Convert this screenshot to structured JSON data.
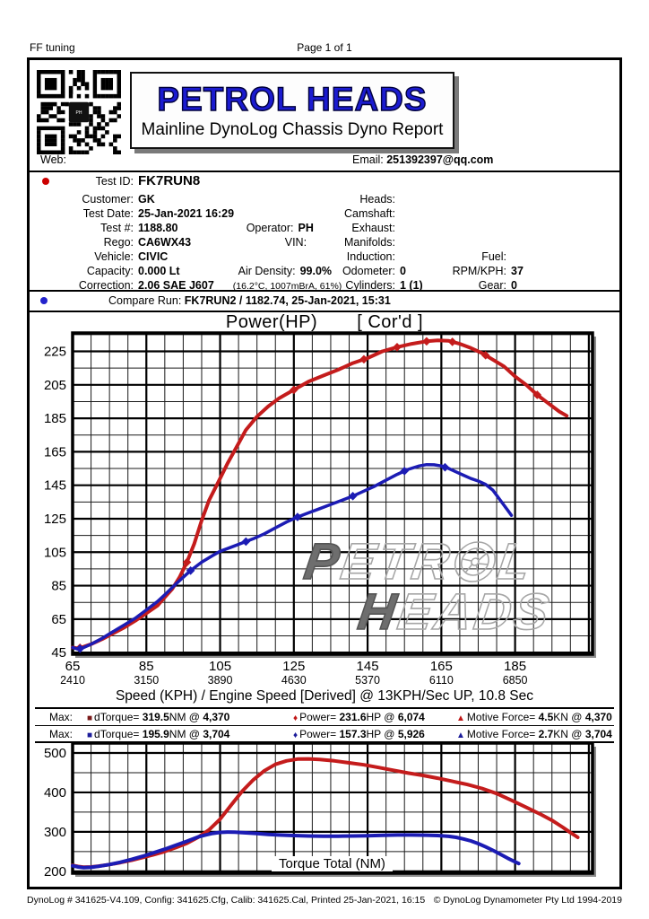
{
  "page_header": {
    "left": "FF tuning",
    "center": "Page 1 of 1"
  },
  "brand": {
    "title": "PETROL HEADS",
    "subtitle": "Mainline DynoLog Chassis Dyno Report",
    "title_color": "#1b1bd0"
  },
  "contact": {
    "web_label": "Web:",
    "email_label": "Email:",
    "email_value": "251392397@qq.com"
  },
  "details": {
    "rows": [
      {
        "big": true,
        "bullet": "#cc0000",
        "left": [
          {
            "l": "Test ID:",
            "v": "FK7RUN8"
          }
        ],
        "mid": [],
        "right": []
      },
      {
        "left": [
          {
            "l": "Customer:",
            "v": "GK"
          }
        ],
        "mid": [
          {
            "l": "Heads:",
            "v": ""
          }
        ],
        "right": []
      },
      {
        "left": [
          {
            "l": "Test Date:",
            "v": "25-Jan-2021 16:29"
          }
        ],
        "mid": [
          {
            "l": "Camshaft:",
            "v": ""
          }
        ],
        "right": []
      },
      {
        "left": [
          {
            "l": "Test #:",
            "v": "1188.80"
          },
          {
            "l": "Operator:",
            "v": "PH"
          }
        ],
        "mid": [
          {
            "l": "Exhaust:",
            "v": ""
          }
        ],
        "right": []
      },
      {
        "left": [
          {
            "l": "Rego:",
            "v": "CA6WX43"
          },
          {
            "l": "VIN:",
            "v": ""
          }
        ],
        "mid": [
          {
            "l": "Manifolds:",
            "v": ""
          }
        ],
        "right": []
      },
      {
        "left": [
          {
            "l": "Vehicle:",
            "v": "CIVIC"
          }
        ],
        "mid": [
          {
            "l": "Induction:",
            "v": ""
          }
        ],
        "right": [
          {
            "l": "Fuel:",
            "v": ""
          }
        ]
      },
      {
        "left": [
          {
            "l": "Capacity:",
            "v": "0.000 Lt"
          },
          {
            "l": "Air Density:",
            "v": "99.0%"
          }
        ],
        "mid": [
          {
            "l": "Odometer:",
            "v": "0"
          }
        ],
        "right": [
          {
            "l": "RPM/KPH:",
            "v": "37"
          }
        ]
      },
      {
        "left": [
          {
            "l": "Correction:",
            "v": "2.06 SAE J607"
          },
          {
            "l": "",
            "v": "(16.2°C, 1007mBrA, 61%)",
            "small": true
          }
        ],
        "mid": [
          {
            "l": "Cylinders:",
            "v": "1 (1)"
          }
        ],
        "right": [
          {
            "l": "Gear:",
            "v": "0"
          }
        ]
      }
    ]
  },
  "compare": {
    "bullet": "#2222cc",
    "label": "Compare Run:",
    "value": "FK7RUN2 / 1182.74,  25-Jan-2021,   15:31"
  },
  "watermark": {
    "l1a": "P",
    "l1b": "ETR",
    "l1c": "L",
    "l2a": "H",
    "l2b": "EADS"
  },
  "legend": {
    "rows": [
      {
        "max_label": "Max:",
        "items": [
          {
            "marker": "■",
            "color": "#7a1a1a",
            "p": "dTorque= ",
            "v1": "319.5",
            "u": "NM",
            "v2": "4,370"
          },
          {
            "marker": "♦",
            "color": "#c01818",
            "p": "Power= ",
            "v1": "231.6",
            "u": "HP",
            "v2": "6,074"
          },
          {
            "marker": "▲",
            "color": "#c01818",
            "p": "Motive Force= ",
            "v1": "4.5",
            "u": "KN",
            "v2": "4,370"
          }
        ]
      },
      {
        "max_label": "Max:",
        "items": [
          {
            "marker": "■",
            "color": "#1c1c9a",
            "p": "dTorque= ",
            "v1": "195.9",
            "u": "NM",
            "v2": "3,704"
          },
          {
            "marker": "♦",
            "color": "#1c1c9a",
            "p": "Power= ",
            "v1": "157.3",
            "u": "HP",
            "v2": "5,926"
          },
          {
            "marker": "▲",
            "color": "#1c1c9a",
            "p": "Motive Force= ",
            "v1": "2.7",
            "u": "KN",
            "v2": "3,704"
          }
        ]
      }
    ]
  },
  "chart_data": [
    {
      "type": "line",
      "title": "Power(HP)",
      "title_suffix": "[ Cor'd ]",
      "xlabel": "Speed (KPH) / Engine Speed [Derived] @ 13KPH/Sec UP, 10.8 Sec",
      "x_range": [
        65,
        206
      ],
      "y_range": [
        44,
        236
      ],
      "x_minor": 5,
      "x_major": 20,
      "y_minor": 10,
      "y_major": 20,
      "grid": true,
      "legend_position": "below",
      "y_ticks": [
        45,
        65,
        85,
        105,
        125,
        145,
        165,
        185,
        205,
        225
      ],
      "x_ticks": [
        {
          "kph": "65",
          "rpm": "2410"
        },
        {
          "kph": "85",
          "rpm": "3150"
        },
        {
          "kph": "105",
          "rpm": "3890"
        },
        {
          "kph": "125",
          "rpm": "4630"
        },
        {
          "kph": "145",
          "rpm": "5370"
        },
        {
          "kph": "165",
          "rpm": "6110"
        },
        {
          "kph": "185",
          "rpm": "6850"
        }
      ],
      "series": [
        {
          "name": "FK7RUN8 Power HP (Cor'd)",
          "color": "#c41c1c",
          "width": 4,
          "markers": [
            67,
            96,
            125,
            144,
            153,
            161,
            168,
            177,
            191
          ],
          "points": [
            [
              65,
              48
            ],
            [
              66.5,
              47.5
            ],
            [
              68,
              48.5
            ],
            [
              70,
              50
            ],
            [
              73,
              53
            ],
            [
              76,
              56.5
            ],
            [
              79,
              60
            ],
            [
              82,
              64
            ],
            [
              85,
              68.5
            ],
            [
              88,
              73
            ],
            [
              90,
              78
            ],
            [
              92,
              83
            ],
            [
              94,
              90
            ],
            [
              96,
              99
            ],
            [
              98,
              110
            ],
            [
              100,
              124
            ],
            [
              102,
              136
            ],
            [
              105,
              149
            ],
            [
              107,
              158
            ],
            [
              110,
              170
            ],
            [
              112,
              178
            ],
            [
              115,
              186
            ],
            [
              118,
              192
            ],
            [
              121,
              197
            ],
            [
              125,
              202
            ],
            [
              129,
              207
            ],
            [
              133,
              210.5
            ],
            [
              137,
              214
            ],
            [
              141,
              218
            ],
            [
              145,
              221
            ],
            [
              149,
              225
            ],
            [
              153,
              227.5
            ],
            [
              157,
              229.5
            ],
            [
              161,
              231
            ],
            [
              164,
              231.6
            ],
            [
              167,
              231.3
            ],
            [
              170,
              229.5
            ],
            [
              173,
              227
            ],
            [
              176,
              224
            ],
            [
              179,
              220
            ],
            [
              182,
              216
            ],
            [
              185,
              210
            ],
            [
              188,
              205
            ],
            [
              191,
              199
            ],
            [
              194,
              194
            ],
            [
              197,
              189
            ],
            [
              199,
              186.5
            ]
          ]
        },
        {
          "name": "FK7RUN2 Power HP (Cor'd)",
          "color": "#1c1cb4",
          "width": 3.5,
          "markers": [
            67,
            97,
            112,
            126,
            141,
            155,
            166
          ],
          "points": [
            [
              65,
              48
            ],
            [
              66.5,
              47
            ],
            [
              68,
              48
            ],
            [
              70,
              50
            ],
            [
              73,
              53.5
            ],
            [
              76,
              57.5
            ],
            [
              79,
              61.5
            ],
            [
              82,
              65.5
            ],
            [
              85,
              70.5
            ],
            [
              88,
              75.5
            ],
            [
              90,
              79.5
            ],
            [
              93,
              86
            ],
            [
              95,
              90
            ],
            [
              97,
              94
            ],
            [
              100,
              99
            ],
            [
              103,
              103
            ],
            [
              105,
              105.5
            ],
            [
              108,
              108
            ],
            [
              111,
              110.5
            ],
            [
              114,
              113
            ],
            [
              117,
              116
            ],
            [
              120,
              119.5
            ],
            [
              123,
              123
            ],
            [
              126,
              126
            ],
            [
              129,
              128.5
            ],
            [
              132,
              131
            ],
            [
              135,
              133.5
            ],
            [
              138,
              136
            ],
            [
              141,
              138.5
            ],
            [
              144,
              141.5
            ],
            [
              147,
              144.5
            ],
            [
              150,
              148
            ],
            [
              153,
              151.5
            ],
            [
              156,
              154.5
            ],
            [
              159,
              156.5
            ],
            [
              161,
              157.3
            ],
            [
              163,
              157.2
            ],
            [
              165,
              156.5
            ],
            [
              167,
              155
            ],
            [
              169,
              153
            ],
            [
              171,
              151
            ],
            [
              173,
              149
            ],
            [
              175,
              147.5
            ],
            [
              177,
              145.5
            ],
            [
              179,
              142
            ],
            [
              181,
              136
            ],
            [
              183,
              130
            ],
            [
              184,
              127
            ]
          ]
        }
      ]
    },
    {
      "type": "line",
      "title": "Torque Total (NM)",
      "x_range": [
        65,
        206
      ],
      "y_range": [
        195,
        525
      ],
      "x_minor": 5,
      "x_major": 20,
      "y_minor": 50,
      "y_major": 100,
      "grid": true,
      "y_ticks": [
        200,
        300,
        400,
        500
      ],
      "x_ticks": [],
      "series": [
        {
          "name": "FK7RUN8 Torque Total NM",
          "color": "#c41c1c",
          "width": 4,
          "markers": [],
          "points": [
            [
              65,
              215
            ],
            [
              66.5,
              212
            ],
            [
              68,
              210.5
            ],
            [
              70,
              211
            ],
            [
              72,
              213
            ],
            [
              75,
              217
            ],
            [
              78,
              222
            ],
            [
              81,
              228
            ],
            [
              84,
              235
            ],
            [
              87,
              242
            ],
            [
              90,
              250
            ],
            [
              93,
              260
            ],
            [
              96,
              271
            ],
            [
              99,
              286
            ],
            [
              102,
              305
            ],
            [
              105,
              332
            ],
            [
              108,
              368
            ],
            [
              111,
              403
            ],
            [
              114,
              432
            ],
            [
              117,
              455
            ],
            [
              120,
              471
            ],
            [
              123,
              480
            ],
            [
              126,
              484.5
            ],
            [
              129,
              485
            ],
            [
              132,
              483.5
            ],
            [
              136,
              480
            ],
            [
              140,
              475
            ],
            [
              144,
              470
            ],
            [
              148,
              463
            ],
            [
              152,
              456
            ],
            [
              156,
              449
            ],
            [
              160,
              443
            ],
            [
              164,
              436
            ],
            [
              168,
              428
            ],
            [
              172,
              420
            ],
            [
              176,
              410
            ],
            [
              180,
              397
            ],
            [
              184,
              380
            ],
            [
              188,
              362
            ],
            [
              192,
              344
            ],
            [
              195,
              329
            ],
            [
              198,
              311
            ],
            [
              200,
              298
            ],
            [
              202,
              286
            ]
          ]
        },
        {
          "name": "FK7RUN2 Torque Total NM",
          "color": "#1c1cb4",
          "width": 4,
          "markers": [],
          "points": [
            [
              65,
              214
            ],
            [
              66.5,
              211
            ],
            [
              68,
              209
            ],
            [
              70,
              210
            ],
            [
              72,
              212.5
            ],
            [
              75,
              217
            ],
            [
              78,
              223
            ],
            [
              81,
              230
            ],
            [
              84,
              238
            ],
            [
              87,
              247
            ],
            [
              90,
              256
            ],
            [
              93,
              266
            ],
            [
              96,
              276
            ],
            [
              99,
              287
            ],
            [
              101,
              292
            ],
            [
              103,
              296
            ],
            [
              105,
              298.5
            ],
            [
              107,
              299.5
            ],
            [
              109,
              299
            ],
            [
              112,
              297.5
            ],
            [
              115,
              295.5
            ],
            [
              118,
              293.5
            ],
            [
              121,
              292
            ],
            [
              125,
              290.5
            ],
            [
              129,
              289.5
            ],
            [
              133,
              289
            ],
            [
              137,
              289
            ],
            [
              141,
              289.5
            ],
            [
              145,
              290
            ],
            [
              149,
              291
            ],
            [
              153,
              292
            ],
            [
              157,
              292
            ],
            [
              161,
              291.5
            ],
            [
              164,
              290.5
            ],
            [
              167,
              288.5
            ],
            [
              169,
              286
            ],
            [
              171,
              282
            ],
            [
              173,
              277
            ],
            [
              175,
              270
            ],
            [
              177,
              262
            ],
            [
              179,
              253
            ],
            [
              181,
              243
            ],
            [
              183,
              233
            ],
            [
              185,
              224
            ],
            [
              186,
              219.5
            ]
          ]
        }
      ]
    }
  ],
  "footer": {
    "left": "DynoLog # 341625-V4.109, Config: 341625.Cfg, Calib: 341625.Cal, Printed 25-Jan-2021, 16:15",
    "right": "© DynoLog Dynamometer Pty Ltd 1994-2019"
  }
}
